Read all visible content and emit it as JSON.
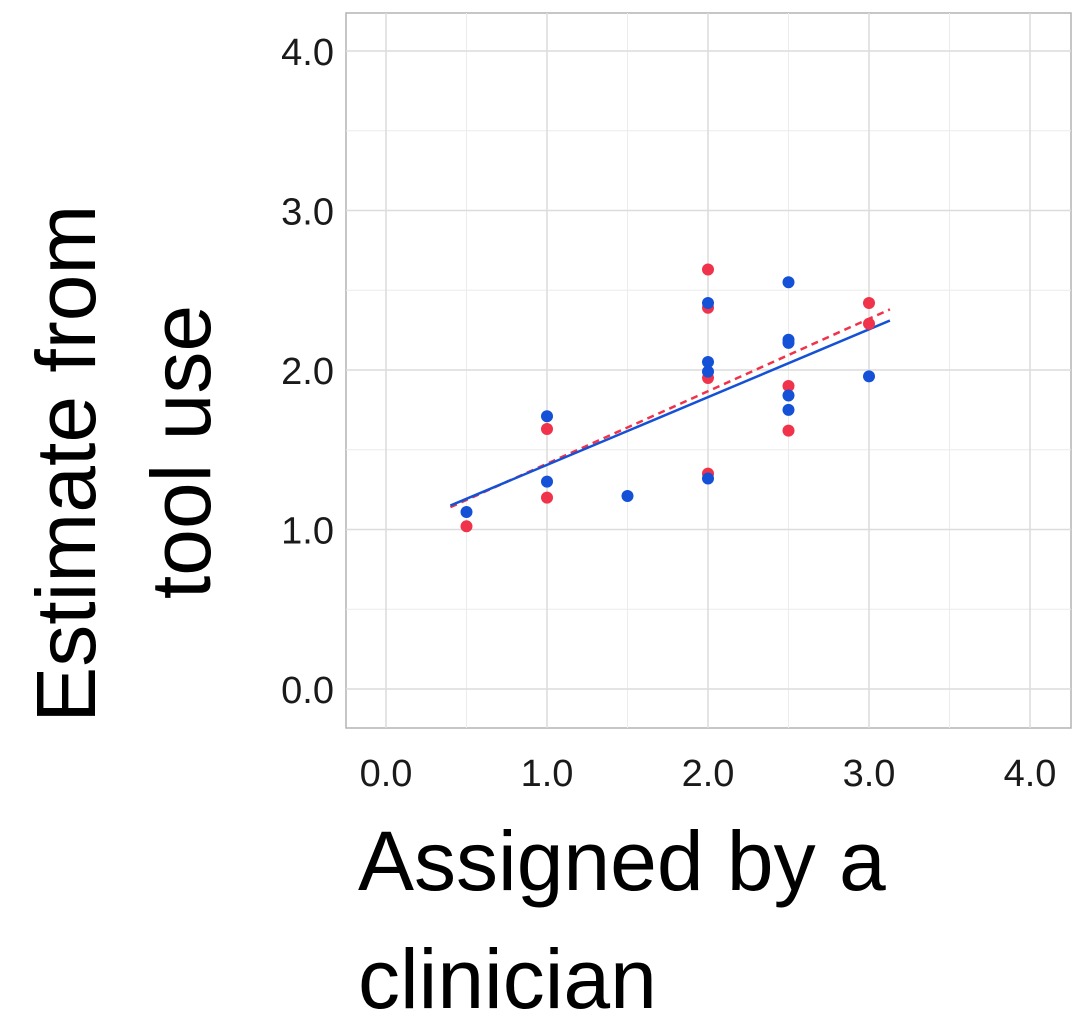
{
  "chart_data": {
    "type": "scatter",
    "xlabel_lines": [
      "Assigned by a",
      "clinician"
    ],
    "ylabel_lines": [
      "Estimate from",
      "tool use"
    ],
    "xlim": [
      -0.25,
      4.25
    ],
    "ylim": [
      -0.25,
      4.25
    ],
    "xticks": [
      0,
      1,
      2,
      3,
      4
    ],
    "yticks": [
      0,
      1,
      2,
      3,
      4
    ],
    "xtick_labels": [
      "0.0",
      "1.0",
      "2.0",
      "3.0",
      "4.0"
    ],
    "ytick_labels": [
      "0.0",
      "1.0",
      "2.0",
      "3.0",
      "4.0"
    ],
    "grid": true,
    "minor_grid": true,
    "series": [
      {
        "color": "#f0334a",
        "points": [
          [
            0.5,
            1.02
          ],
          [
            1.0,
            1.63
          ],
          [
            1.0,
            1.2
          ],
          [
            2.0,
            2.63
          ],
          [
            2.0,
            2.39
          ],
          [
            2.0,
            1.95
          ],
          [
            2.0,
            1.35
          ],
          [
            2.5,
            1.9
          ],
          [
            2.5,
            1.62
          ],
          [
            3.0,
            2.42
          ],
          [
            3.0,
            2.29
          ]
        ],
        "fit": {
          "x": [
            0.4,
            3.13
          ],
          "y": [
            1.14,
            2.38
          ],
          "style": "dashed"
        }
      },
      {
        "color": "#1451d6",
        "points": [
          [
            0.5,
            1.11
          ],
          [
            1.0,
            1.71
          ],
          [
            1.0,
            1.3
          ],
          [
            1.5,
            1.21
          ],
          [
            2.0,
            2.42
          ],
          [
            2.0,
            2.05
          ],
          [
            2.0,
            1.99
          ],
          [
            2.0,
            1.32
          ],
          [
            2.5,
            2.55
          ],
          [
            2.5,
            2.19
          ],
          [
            2.5,
            2.17
          ],
          [
            2.5,
            1.84
          ],
          [
            2.5,
            1.75
          ],
          [
            3.0,
            1.96
          ]
        ],
        "fit": {
          "x": [
            0.4,
            3.13
          ],
          "y": [
            1.15,
            2.31
          ],
          "style": "solid"
        }
      }
    ]
  }
}
